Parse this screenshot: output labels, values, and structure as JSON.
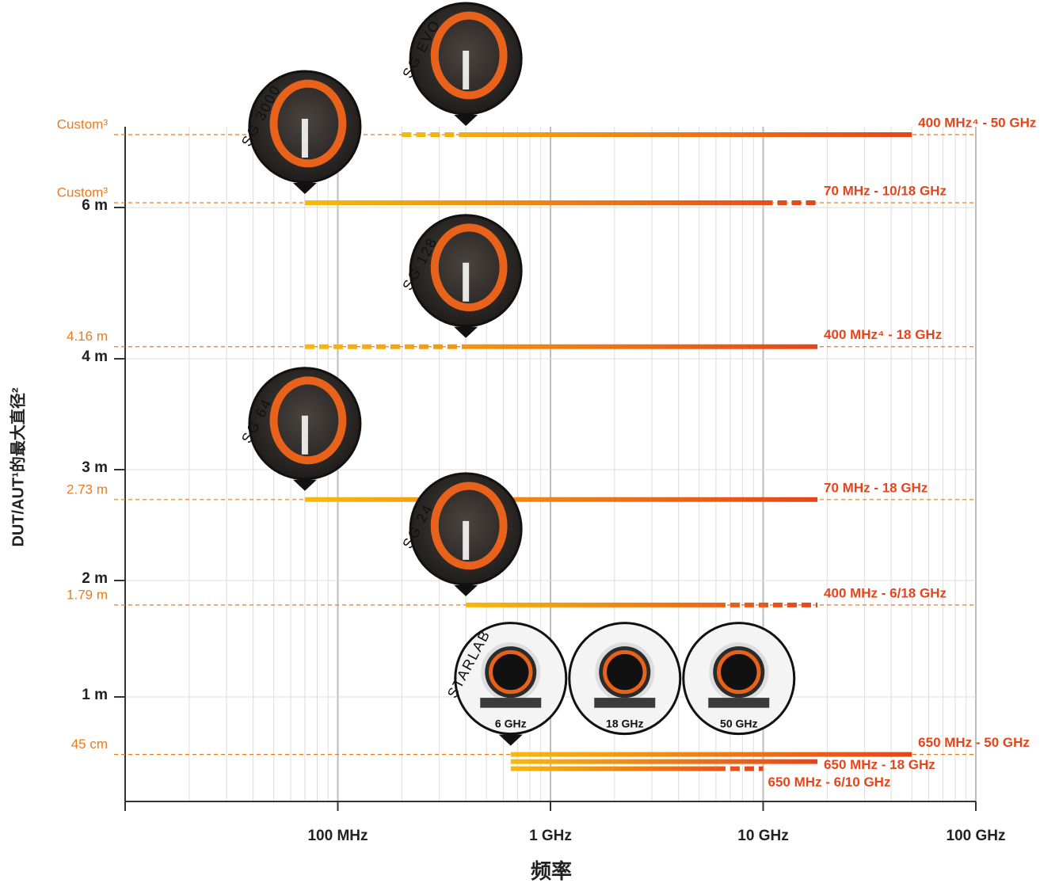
{
  "chart_data": {
    "type": "range",
    "x_label": "频率",
    "y_label": "DUT/AUT¹的最大直径²",
    "xscale": "log",
    "xlim": [
      10000000,
      100000000000
    ],
    "xticks": [
      {
        "value": 100000000,
        "label": "100 MHz"
      },
      {
        "value": 1000000000,
        "label": "1 GHz"
      },
      {
        "value": 10000000000,
        "label": "10 GHz"
      },
      {
        "value": 100000000000,
        "label": "100 GHz"
      }
    ],
    "ylim": [
      0,
      6
    ],
    "yticks": [
      {
        "value": 1,
        "label": "1 m"
      },
      {
        "value": 2,
        "label": "2 m"
      },
      {
        "value": 3,
        "label": "3 m"
      },
      {
        "value": 4,
        "label": "4 m"
      },
      {
        "value": 6,
        "label": "6 m"
      }
    ],
    "grid": true,
    "minor_grid": true,
    "colors": {
      "start": "#f6b90f",
      "end": "#e4451b",
      "row_label": "#ec7a1c"
    },
    "rows": [
      {
        "product": "SG EVO",
        "y": null,
        "y_label": "Custom³",
        "lines": [
          {
            "label": "400 MHz⁴ - 50 GHz",
            "segments": [
              {
                "from": 200000000,
                "to": 400000000,
                "dashed": true
              },
              {
                "from": 400000000,
                "to": 50000000000,
                "dashed": false
              }
            ]
          }
        ]
      },
      {
        "product": "SG 3000",
        "y": null,
        "y_label": "Custom³",
        "lines": [
          {
            "label": "70 MHz - 10/18 GHz",
            "segments": [
              {
                "from": 70000000,
                "to": 10000000000,
                "dashed": false
              },
              {
                "from": 10000000000,
                "to": 18000000000,
                "dashed": true
              }
            ]
          }
        ]
      },
      {
        "product": "SG 128",
        "y": 4.16,
        "y_label": "4.16 m",
        "lines": [
          {
            "label": "400 MHz⁴ - 18 GHz",
            "segments": [
              {
                "from": 70000000,
                "to": 400000000,
                "dashed": true
              },
              {
                "from": 400000000,
                "to": 18000000000,
                "dashed": false
              }
            ]
          }
        ]
      },
      {
        "product": "SG 64",
        "y": 2.73,
        "y_label": "2.73 m",
        "lines": [
          {
            "label": "70 MHz - 18 GHz",
            "segments": [
              {
                "from": 70000000,
                "to": 18000000000,
                "dashed": false
              }
            ]
          }
        ]
      },
      {
        "product": "SG 24",
        "y": 1.79,
        "y_label": "1.79 m",
        "lines": [
          {
            "label": "400 MHz - 6/18 GHz",
            "segments": [
              {
                "from": 400000000,
                "to": 6000000000,
                "dashed": false
              },
              {
                "from": 6000000000,
                "to": 18000000000,
                "dashed": true
              }
            ]
          }
        ]
      },
      {
        "product": "STARLAB",
        "y": 0.45,
        "y_label": "45 cm",
        "variants": [
          "6 GHz",
          "18 GHz",
          "50 GHz"
        ],
        "lines": [
          {
            "label": "650 MHz - 50 GHz",
            "segments": [
              {
                "from": 650000000,
                "to": 50000000000,
                "dashed": false
              }
            ]
          },
          {
            "label": "650 MHz - 18 GHz",
            "segments": [
              {
                "from": 650000000,
                "to": 18000000000,
                "dashed": false
              }
            ]
          },
          {
            "label": "650 MHz - 6/10 GHz",
            "segments": [
              {
                "from": 650000000,
                "to": 6000000000,
                "dashed": false
              },
              {
                "from": 6000000000,
                "to": 10000000000,
                "dashed": true
              }
            ]
          }
        ]
      }
    ]
  }
}
